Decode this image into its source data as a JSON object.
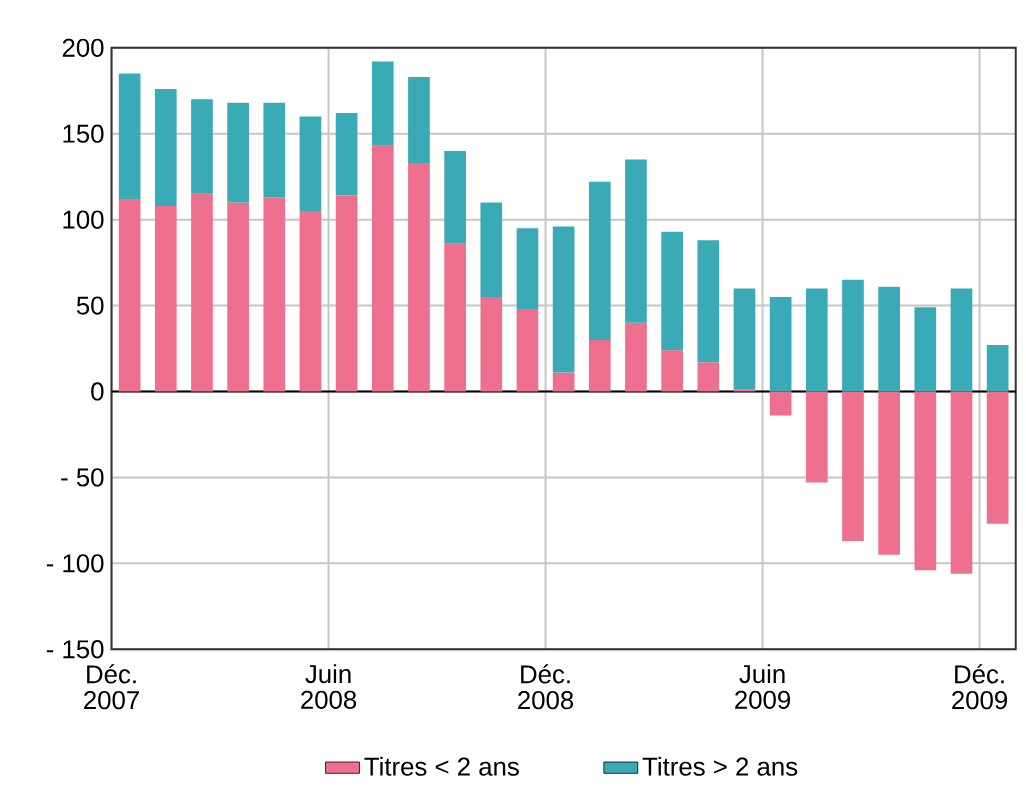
{
  "chart_data": {
    "type": "bar",
    "stacked": true,
    "categories": [
      "Déc. 2007",
      null,
      null,
      null,
      null,
      null,
      "Juin 2008",
      null,
      null,
      null,
      null,
      null,
      "Déc. 2008",
      null,
      null,
      null,
      null,
      null,
      "Juin 2009",
      null,
      null,
      null,
      null,
      null,
      "Déc. 2009"
    ],
    "series": [
      {
        "name": "Titres < 2 ans",
        "color": "#ef6f8f",
        "values": [
          112,
          108,
          115,
          110,
          113,
          105,
          114,
          143,
          133,
          86,
          55,
          48,
          11,
          30,
          40,
          24,
          17,
          1,
          -14,
          -53,
          -87,
          -95,
          -104,
          -106,
          -77
        ]
      },
      {
        "name": "Titres > 2 ans",
        "color": "#3aaab6",
        "values": [
          73,
          68,
          55,
          58,
          55,
          55,
          48,
          49,
          50,
          54,
          55,
          47,
          85,
          92,
          95,
          69,
          71,
          59,
          55,
          60,
          65,
          61,
          49,
          60,
          27
        ]
      }
    ],
    "ylim": [
      -150,
      200
    ],
    "yticks": [
      {
        "value": -150,
        "label": "- 150"
      },
      {
        "value": -100,
        "label": "- 100"
      },
      {
        "value": -50,
        "label": "- 50"
      },
      0,
      50,
      100,
      150,
      200
    ],
    "grid": true,
    "legend": "bottom"
  }
}
